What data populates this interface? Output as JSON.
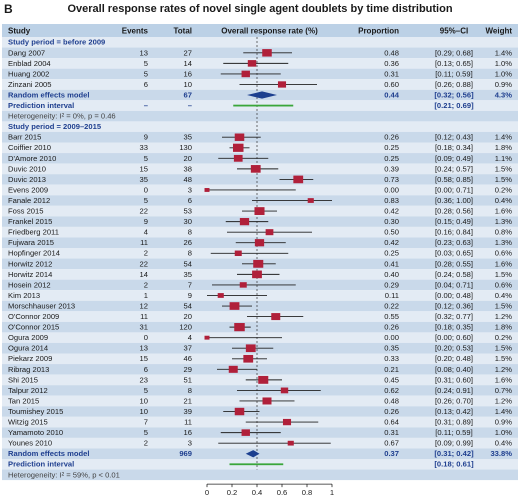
{
  "panel_label": "B",
  "chart_data": {
    "type": "forest",
    "title": "Overall response rates of novel single agent doublets by time distribution",
    "columns": [
      "Study",
      "Events",
      "Total",
      "Overall response rate (%)",
      "Proportion",
      "95%–CI",
      "Weight"
    ],
    "xlim": [
      0,
      1
    ],
    "xticks": [
      "0",
      "0.2",
      "0.4",
      "0.6",
      "0.8",
      "1"
    ],
    "reference_line": 0.4,
    "groups": [
      {
        "heading": "Study period = before 2009",
        "studies": [
          {
            "study": "Dang 2007",
            "events": "13",
            "total": "27",
            "proportion": 0.48,
            "prop_label": "0.48",
            "ci_low": 0.29,
            "ci_high": 0.68,
            "ci_label": "[0.29; 0.68]",
            "weight": 1.4,
            "weight_label": "1.4%"
          },
          {
            "study": "Enblad 2004",
            "events": "5",
            "total": "14",
            "proportion": 0.36,
            "prop_label": "0.36",
            "ci_low": 0.13,
            "ci_high": 0.65,
            "ci_label": "[0.13; 0.65]",
            "weight": 1.0,
            "weight_label": "1.0%"
          },
          {
            "study": "Huang 2002",
            "events": "5",
            "total": "16",
            "proportion": 0.31,
            "prop_label": "0.31",
            "ci_low": 0.11,
            "ci_high": 0.59,
            "ci_label": "[0.11; 0.59]",
            "weight": 1.0,
            "weight_label": "1.0%"
          },
          {
            "study": "Zinzani 2005",
            "events": "6",
            "total": "10",
            "proportion": 0.6,
            "prop_label": "0.60",
            "ci_low": 0.26,
            "ci_high": 0.88,
            "ci_label": "[0.26; 0.88]",
            "weight": 0.9,
            "weight_label": "0.9%"
          }
        ],
        "random_effects": {
          "label": "Random effects model",
          "total": "67",
          "proportion": 0.44,
          "prop_label": "0.44",
          "ci_low": 0.32,
          "ci_high": 0.56,
          "ci_label": "[0.32; 0.56]",
          "weight_label": "4.3%"
        },
        "prediction": {
          "label": "Prediction interval",
          "events": "–",
          "total": "–",
          "ci_low": 0.21,
          "ci_high": 0.69,
          "ci_label": "[0.21; 0.69]"
        },
        "heterogeneity": "Heterogeneity: I² = 0%, p = 0.46"
      },
      {
        "heading": "Study period = 2009–2015",
        "studies": [
          {
            "study": "Barr 2015",
            "events": "9",
            "total": "35",
            "proportion": 0.26,
            "prop_label": "0.26",
            "ci_low": 0.12,
            "ci_high": 0.43,
            "ci_label": "[0.12; 0.43]",
            "weight": 1.4,
            "weight_label": "1.4%"
          },
          {
            "study": "Coiffier 2010",
            "events": "33",
            "total": "130",
            "proportion": 0.25,
            "prop_label": "0.25",
            "ci_low": 0.18,
            "ci_high": 0.34,
            "ci_label": "[0.18; 0.34]",
            "weight": 1.8,
            "weight_label": "1.8%"
          },
          {
            "study": "D'Amore 2010",
            "events": "5",
            "total": "20",
            "proportion": 0.25,
            "prop_label": "0.25",
            "ci_low": 0.09,
            "ci_high": 0.49,
            "ci_label": "[0.09; 0.49]",
            "weight": 1.1,
            "weight_label": "1.1%"
          },
          {
            "study": "Duvic 2010",
            "events": "15",
            "total": "38",
            "proportion": 0.39,
            "prop_label": "0.39",
            "ci_low": 0.24,
            "ci_high": 0.57,
            "ci_label": "[0.24; 0.57]",
            "weight": 1.5,
            "weight_label": "1.5%"
          },
          {
            "study": "Duvic 2013",
            "events": "35",
            "total": "48",
            "proportion": 0.73,
            "prop_label": "0.73",
            "ci_low": 0.58,
            "ci_high": 0.85,
            "ci_label": "[0.58; 0.85]",
            "weight": 1.5,
            "weight_label": "1.5%"
          },
          {
            "study": "Evens 2009",
            "events": "0",
            "total": "3",
            "proportion": 0.0,
            "prop_label": "0.00",
            "ci_low": 0.0,
            "ci_high": 0.71,
            "ci_label": "[0.00; 0.71]",
            "weight": 0.2,
            "weight_label": "0.2%"
          },
          {
            "study": "Fanale 2012",
            "events": "5",
            "total": "6",
            "proportion": 0.83,
            "prop_label": "0.83",
            "ci_low": 0.36,
            "ci_high": 1.0,
            "ci_label": "[0.36; 1.00]",
            "weight": 0.4,
            "weight_label": "0.4%"
          },
          {
            "study": "Foss 2015",
            "events": "22",
            "total": "53",
            "proportion": 0.42,
            "prop_label": "0.42",
            "ci_low": 0.28,
            "ci_high": 0.56,
            "ci_label": "[0.28; 0.56]",
            "weight": 1.6,
            "weight_label": "1.6%"
          },
          {
            "study": "Frankel 2015",
            "events": "9",
            "total": "30",
            "proportion": 0.3,
            "prop_label": "0.30",
            "ci_low": 0.15,
            "ci_high": 0.49,
            "ci_label": "[0.15; 0.49]",
            "weight": 1.3,
            "weight_label": "1.3%"
          },
          {
            "study": "Friedberg 2011",
            "events": "4",
            "total": "8",
            "proportion": 0.5,
            "prop_label": "0.50",
            "ci_low": 0.16,
            "ci_high": 0.84,
            "ci_label": "[0.16; 0.84]",
            "weight": 0.8,
            "weight_label": "0.8%"
          },
          {
            "study": "Fujwara 2015",
            "events": "11",
            "total": "26",
            "proportion": 0.42,
            "prop_label": "0.42",
            "ci_low": 0.23,
            "ci_high": 0.63,
            "ci_label": "[0.23; 0.63]",
            "weight": 1.3,
            "weight_label": "1.3%"
          },
          {
            "study": "Hopfinger 2014",
            "events": "2",
            "total": "8",
            "proportion": 0.25,
            "prop_label": "0.25",
            "ci_low": 0.03,
            "ci_high": 0.65,
            "ci_label": "[0.03; 0.65]",
            "weight": 0.6,
            "weight_label": "0.6%"
          },
          {
            "study": "Horwitz 2012",
            "events": "22",
            "total": "54",
            "proportion": 0.41,
            "prop_label": "0.41",
            "ci_low": 0.28,
            "ci_high": 0.55,
            "ci_label": "[0.28; 0.55]",
            "weight": 1.6,
            "weight_label": "1.6%"
          },
          {
            "study": "Horwitz 2014",
            "events": "14",
            "total": "35",
            "proportion": 0.4,
            "prop_label": "0.40",
            "ci_low": 0.24,
            "ci_high": 0.58,
            "ci_label": "[0.24; 0.58]",
            "weight": 1.5,
            "weight_label": "1.5%"
          },
          {
            "study": "Hosein 2012",
            "events": "2",
            "total": "7",
            "proportion": 0.29,
            "prop_label": "0.29",
            "ci_low": 0.04,
            "ci_high": 0.71,
            "ci_label": "[0.04; 0.71]",
            "weight": 0.6,
            "weight_label": "0.6%"
          },
          {
            "study": "Kim 2013",
            "events": "1",
            "total": "9",
            "proportion": 0.11,
            "prop_label": "0.11",
            "ci_low": 0.0,
            "ci_high": 0.48,
            "ci_label": "[0.00; 0.48]",
            "weight": 0.4,
            "weight_label": "0.4%"
          },
          {
            "study": "Morschhauser 2013",
            "events": "12",
            "total": "54",
            "proportion": 0.22,
            "prop_label": "0.22",
            "ci_low": 0.12,
            "ci_high": 0.36,
            "ci_label": "[0.12; 0.36]",
            "weight": 1.5,
            "weight_label": "1.5%"
          },
          {
            "study": "O'Connor 2009",
            "events": "11",
            "total": "20",
            "proportion": 0.55,
            "prop_label": "0.55",
            "ci_low": 0.32,
            "ci_high": 0.77,
            "ci_label": "[0.32; 0.77]",
            "weight": 1.2,
            "weight_label": "1.2%"
          },
          {
            "study": "O'Connor 2015",
            "events": "31",
            "total": "120",
            "proportion": 0.26,
            "prop_label": "0.26",
            "ci_low": 0.18,
            "ci_high": 0.35,
            "ci_label": "[0.18; 0.35]",
            "weight": 1.8,
            "weight_label": "1.8%"
          },
          {
            "study": "Ogura 2009",
            "events": "0",
            "total": "4",
            "proportion": 0.0,
            "prop_label": "0.00",
            "ci_low": 0.0,
            "ci_high": 0.6,
            "ci_label": "[0.00; 0.60]",
            "weight": 0.2,
            "weight_label": "0.2%"
          },
          {
            "study": "Ogura 2014",
            "events": "13",
            "total": "37",
            "proportion": 0.35,
            "prop_label": "0.35",
            "ci_low": 0.2,
            "ci_high": 0.53,
            "ci_label": "[0.20; 0.53]",
            "weight": 1.5,
            "weight_label": "1.5%"
          },
          {
            "study": "Piekarz 2009",
            "events": "15",
            "total": "46",
            "proportion": 0.33,
            "prop_label": "0.33",
            "ci_low": 0.2,
            "ci_high": 0.48,
            "ci_label": "[0.20; 0.48]",
            "weight": 1.5,
            "weight_label": "1.5%"
          },
          {
            "study": "Ribrag 2013",
            "events": "6",
            "total": "29",
            "proportion": 0.21,
            "prop_label": "0.21",
            "ci_low": 0.08,
            "ci_high": 0.4,
            "ci_label": "[0.08; 0.40]",
            "weight": 1.2,
            "weight_label": "1.2%"
          },
          {
            "study": "Shi 2015",
            "events": "23",
            "total": "51",
            "proportion": 0.45,
            "prop_label": "0.45",
            "ci_low": 0.31,
            "ci_high": 0.6,
            "ci_label": "[0.31; 0.60]",
            "weight": 1.6,
            "weight_label": "1.6%"
          },
          {
            "study": "Talpur 2012",
            "events": "5",
            "total": "8",
            "proportion": 0.62,
            "prop_label": "0.62",
            "ci_low": 0.24,
            "ci_high": 0.91,
            "ci_label": "[0.24; 0.91]",
            "weight": 0.7,
            "weight_label": "0.7%"
          },
          {
            "study": "Tan 2015",
            "events": "10",
            "total": "21",
            "proportion": 0.48,
            "prop_label": "0.48",
            "ci_low": 0.26,
            "ci_high": 0.7,
            "ci_label": "[0.26; 0.70]",
            "weight": 1.2,
            "weight_label": "1.2%"
          },
          {
            "study": "Toumishey 2015",
            "events": "10",
            "total": "39",
            "proportion": 0.26,
            "prop_label": "0.26",
            "ci_low": 0.13,
            "ci_high": 0.42,
            "ci_label": "[0.13; 0.42]",
            "weight": 1.4,
            "weight_label": "1.4%"
          },
          {
            "study": "Witzig 2015",
            "events": "7",
            "total": "11",
            "proportion": 0.64,
            "prop_label": "0.64",
            "ci_low": 0.31,
            "ci_high": 0.89,
            "ci_label": "[0.31; 0.89]",
            "weight": 0.9,
            "weight_label": "0.9%"
          },
          {
            "study": "Yamamoto 2010",
            "events": "5",
            "total": "16",
            "proportion": 0.31,
            "prop_label": "0.31",
            "ci_low": 0.11,
            "ci_high": 0.59,
            "ci_label": "[0.11; 0.59]",
            "weight": 1.0,
            "weight_label": "1.0%"
          },
          {
            "study": "Younes 2010",
            "events": "2",
            "total": "3",
            "proportion": 0.67,
            "prop_label": "0.67",
            "ci_low": 0.09,
            "ci_high": 0.99,
            "ci_label": "[0.09; 0.99]",
            "weight": 0.4,
            "weight_label": "0.4%"
          }
        ],
        "random_effects": {
          "label": "Random effects model",
          "total": "969",
          "proportion": 0.37,
          "prop_label": "0.37",
          "ci_low": 0.31,
          "ci_high": 0.42,
          "ci_label": "[0.31; 0.42]",
          "weight_label": "33.8%"
        },
        "prediction": {
          "label": "Prediction interval",
          "events": "",
          "total": "",
          "ci_low": 0.18,
          "ci_high": 0.61,
          "ci_label": "[0.18; 0.61]"
        },
        "heterogeneity": "Heterogeneity: I² = 59%, p < 0.01"
      }
    ]
  },
  "colors": {
    "header_bg": "#bcd1e6",
    "band_light": "#e3ebf4",
    "band_dark": "#c9d9ea",
    "square": "#b0203a",
    "diamond": "#1c3f8f",
    "prediction": "#3aa63a",
    "summary_text": "#1f3f8f",
    "heading_text": "#1f3f8f"
  }
}
